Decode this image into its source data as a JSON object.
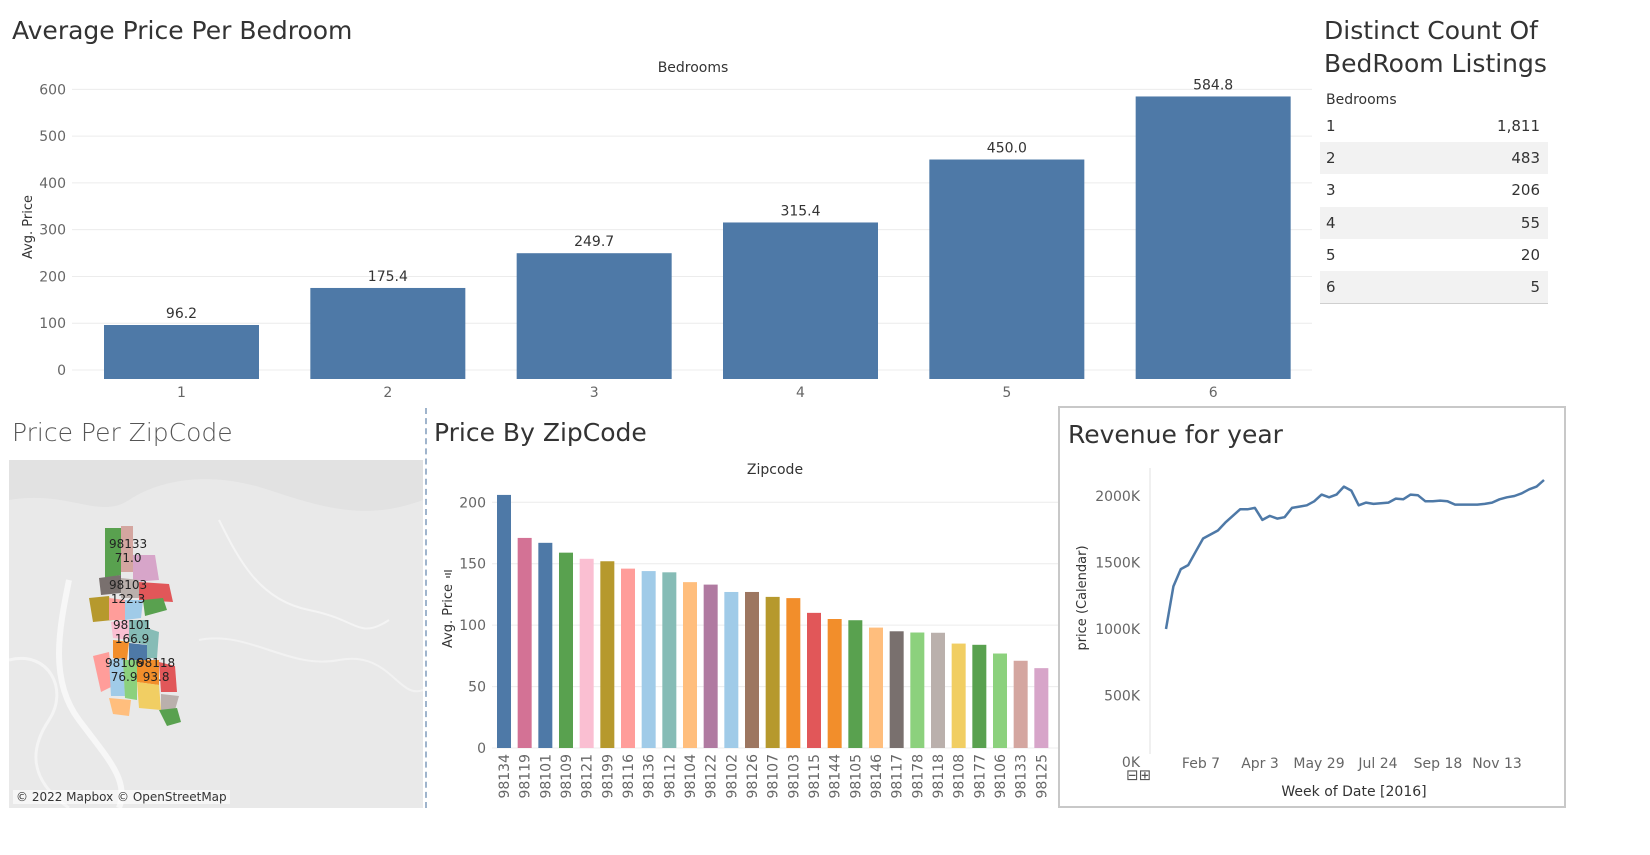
{
  "avg_price_bedroom": {
    "title": "Average Price Per Bedroom",
    "axis_top": "Bedrooms",
    "ylabel": "Avg. Price"
  },
  "distinct_count": {
    "title_line1": "Distinct Count Of",
    "title_line2": "BedRoom Listings",
    "header": "Bedrooms",
    "rows": [
      {
        "k": "1",
        "v": "1,811"
      },
      {
        "k": "2",
        "v": "483"
      },
      {
        "k": "3",
        "v": "206"
      },
      {
        "k": "4",
        "v": "55"
      },
      {
        "k": "5",
        "v": "20"
      },
      {
        "k": "6",
        "v": "5"
      }
    ]
  },
  "zip_map": {
    "title": "Price Per ZipCode",
    "attribution": "© 2022 Mapbox © OpenStreetMap",
    "labels": [
      {
        "zip": "98133",
        "val": "71.0"
      },
      {
        "zip": "98103",
        "val": "122.3"
      },
      {
        "zip": "98101",
        "val": "166.9"
      },
      {
        "zip": "98106",
        "val": "76.9"
      },
      {
        "zip": "98118",
        "val": "93.8"
      }
    ]
  },
  "price_by_zip": {
    "title": "Price By ZipCode",
    "axis_top": "Zipcode",
    "ylabel": "Avg. Price"
  },
  "revenue": {
    "title": "Revenue for year",
    "ylabel": "price (Calendar)",
    "xlabel": "Week of Date [2016]",
    "zoom_buttons": "⊟⊞"
  },
  "chart_data": [
    {
      "type": "bar",
      "title": "Average Price Per Bedroom",
      "xlabel": "Bedrooms",
      "ylabel": "Avg. Price",
      "categories": [
        "1",
        "2",
        "3",
        "4",
        "5",
        "6"
      ],
      "values": [
        96.2,
        175.4,
        249.7,
        315.4,
        450.0,
        584.8
      ],
      "value_labels": [
        "96.2",
        "175.4",
        "249.7",
        "315.4",
        "450.0",
        "584.8"
      ],
      "yticks": [
        0,
        100,
        200,
        300,
        400,
        500,
        600
      ],
      "ylim": [
        0,
        620
      ],
      "color": "#4e79a7",
      "grid": true
    },
    {
      "type": "bar",
      "title": "Price By ZipCode",
      "xlabel": "Zipcode",
      "ylabel": "Avg. Price",
      "categories": [
        "98134",
        "98119",
        "98101",
        "98109",
        "98121",
        "98199",
        "98116",
        "98136",
        "98112",
        "98104",
        "98122",
        "98102",
        "98126",
        "98107",
        "98103",
        "98115",
        "98144",
        "98105",
        "98146",
        "98117",
        "98178",
        "98118",
        "98108",
        "98177",
        "98106",
        "98133",
        "98125"
      ],
      "values": [
        206,
        171,
        167,
        159,
        154,
        152,
        146,
        144,
        143,
        135,
        133,
        127,
        127,
        123,
        122,
        110,
        105,
        104,
        98,
        95,
        94,
        93.8,
        85,
        84,
        76.9,
        71.0,
        65
      ],
      "colors": [
        "#4e79a7",
        "#d37295",
        "#4e79a7",
        "#59a14f",
        "#fabfd2",
        "#b6992d",
        "#ff9d9a",
        "#a0cbe8",
        "#86bcb6",
        "#ffbe7d",
        "#b07aa1",
        "#a0cbe8",
        "#9d7660",
        "#b6992d",
        "#f28e2b",
        "#e15759",
        "#f28e2b",
        "#59a14f",
        "#ffbe7d",
        "#79706e",
        "#8cd17d",
        "#bab0ac",
        "#f1ce63",
        "#59a14f",
        "#8cd17d",
        "#d4a6a0",
        "#d7a5c9"
      ],
      "yticks": [
        0,
        50,
        100,
        150,
        200
      ],
      "ylim": [
        0,
        210
      ],
      "grid": true
    },
    {
      "type": "line",
      "title": "Revenue for year",
      "xlabel": "Week of Date [2016]",
      "ylabel": "price (Calendar)",
      "x": [
        "2016-01-04",
        "2016-01-11",
        "2016-01-18",
        "2016-01-25",
        "2016-02-01",
        "2016-02-08",
        "2016-02-15",
        "2016-02-22",
        "2016-02-29",
        "2016-03-07",
        "2016-03-14",
        "2016-03-21",
        "2016-03-28",
        "2016-04-04",
        "2016-04-11",
        "2016-04-18",
        "2016-04-25",
        "2016-05-02",
        "2016-05-09",
        "2016-05-16",
        "2016-05-23",
        "2016-05-30",
        "2016-06-06",
        "2016-06-13",
        "2016-06-20",
        "2016-06-27",
        "2016-07-04",
        "2016-07-11",
        "2016-07-18",
        "2016-07-25",
        "2016-08-01",
        "2016-08-08",
        "2016-08-15",
        "2016-08-22",
        "2016-08-29",
        "2016-09-05",
        "2016-09-12",
        "2016-09-19",
        "2016-09-26",
        "2016-10-03",
        "2016-10-10",
        "2016-10-17",
        "2016-10-24",
        "2016-10-31",
        "2016-11-07",
        "2016-11-14",
        "2016-11-21",
        "2016-11-28",
        "2016-12-05",
        "2016-12-12",
        "2016-12-19",
        "2016-12-26"
      ],
      "values": [
        1000,
        1320,
        1450,
        1480,
        1580,
        1680,
        1710,
        1740,
        1800,
        1850,
        1900,
        1900,
        1910,
        1820,
        1850,
        1830,
        1840,
        1910,
        1920,
        1930,
        1960,
        2010,
        1990,
        2010,
        2070,
        2040,
        1930,
        1950,
        1940,
        1945,
        1950,
        1980,
        1975,
        2010,
        2005,
        1960,
        1960,
        1965,
        1960,
        1935,
        1935,
        1935,
        1935,
        1940,
        1950,
        1975,
        1990,
        2000,
        2020,
        2050,
        2070,
        2120
      ],
      "ylim": [
        0,
        2150
      ],
      "yticks": [
        0,
        500,
        1000,
        1500,
        2000
      ],
      "ytick_labels": [
        "0K",
        "500K",
        "1000K",
        "1500K",
        "2000K"
      ],
      "xtick_labels": [
        "Feb 7",
        "Apr 3",
        "May 29",
        "Jul 24",
        "Sep 18",
        "Nov 13"
      ],
      "color": "#4e79a7",
      "grid": false
    }
  ]
}
